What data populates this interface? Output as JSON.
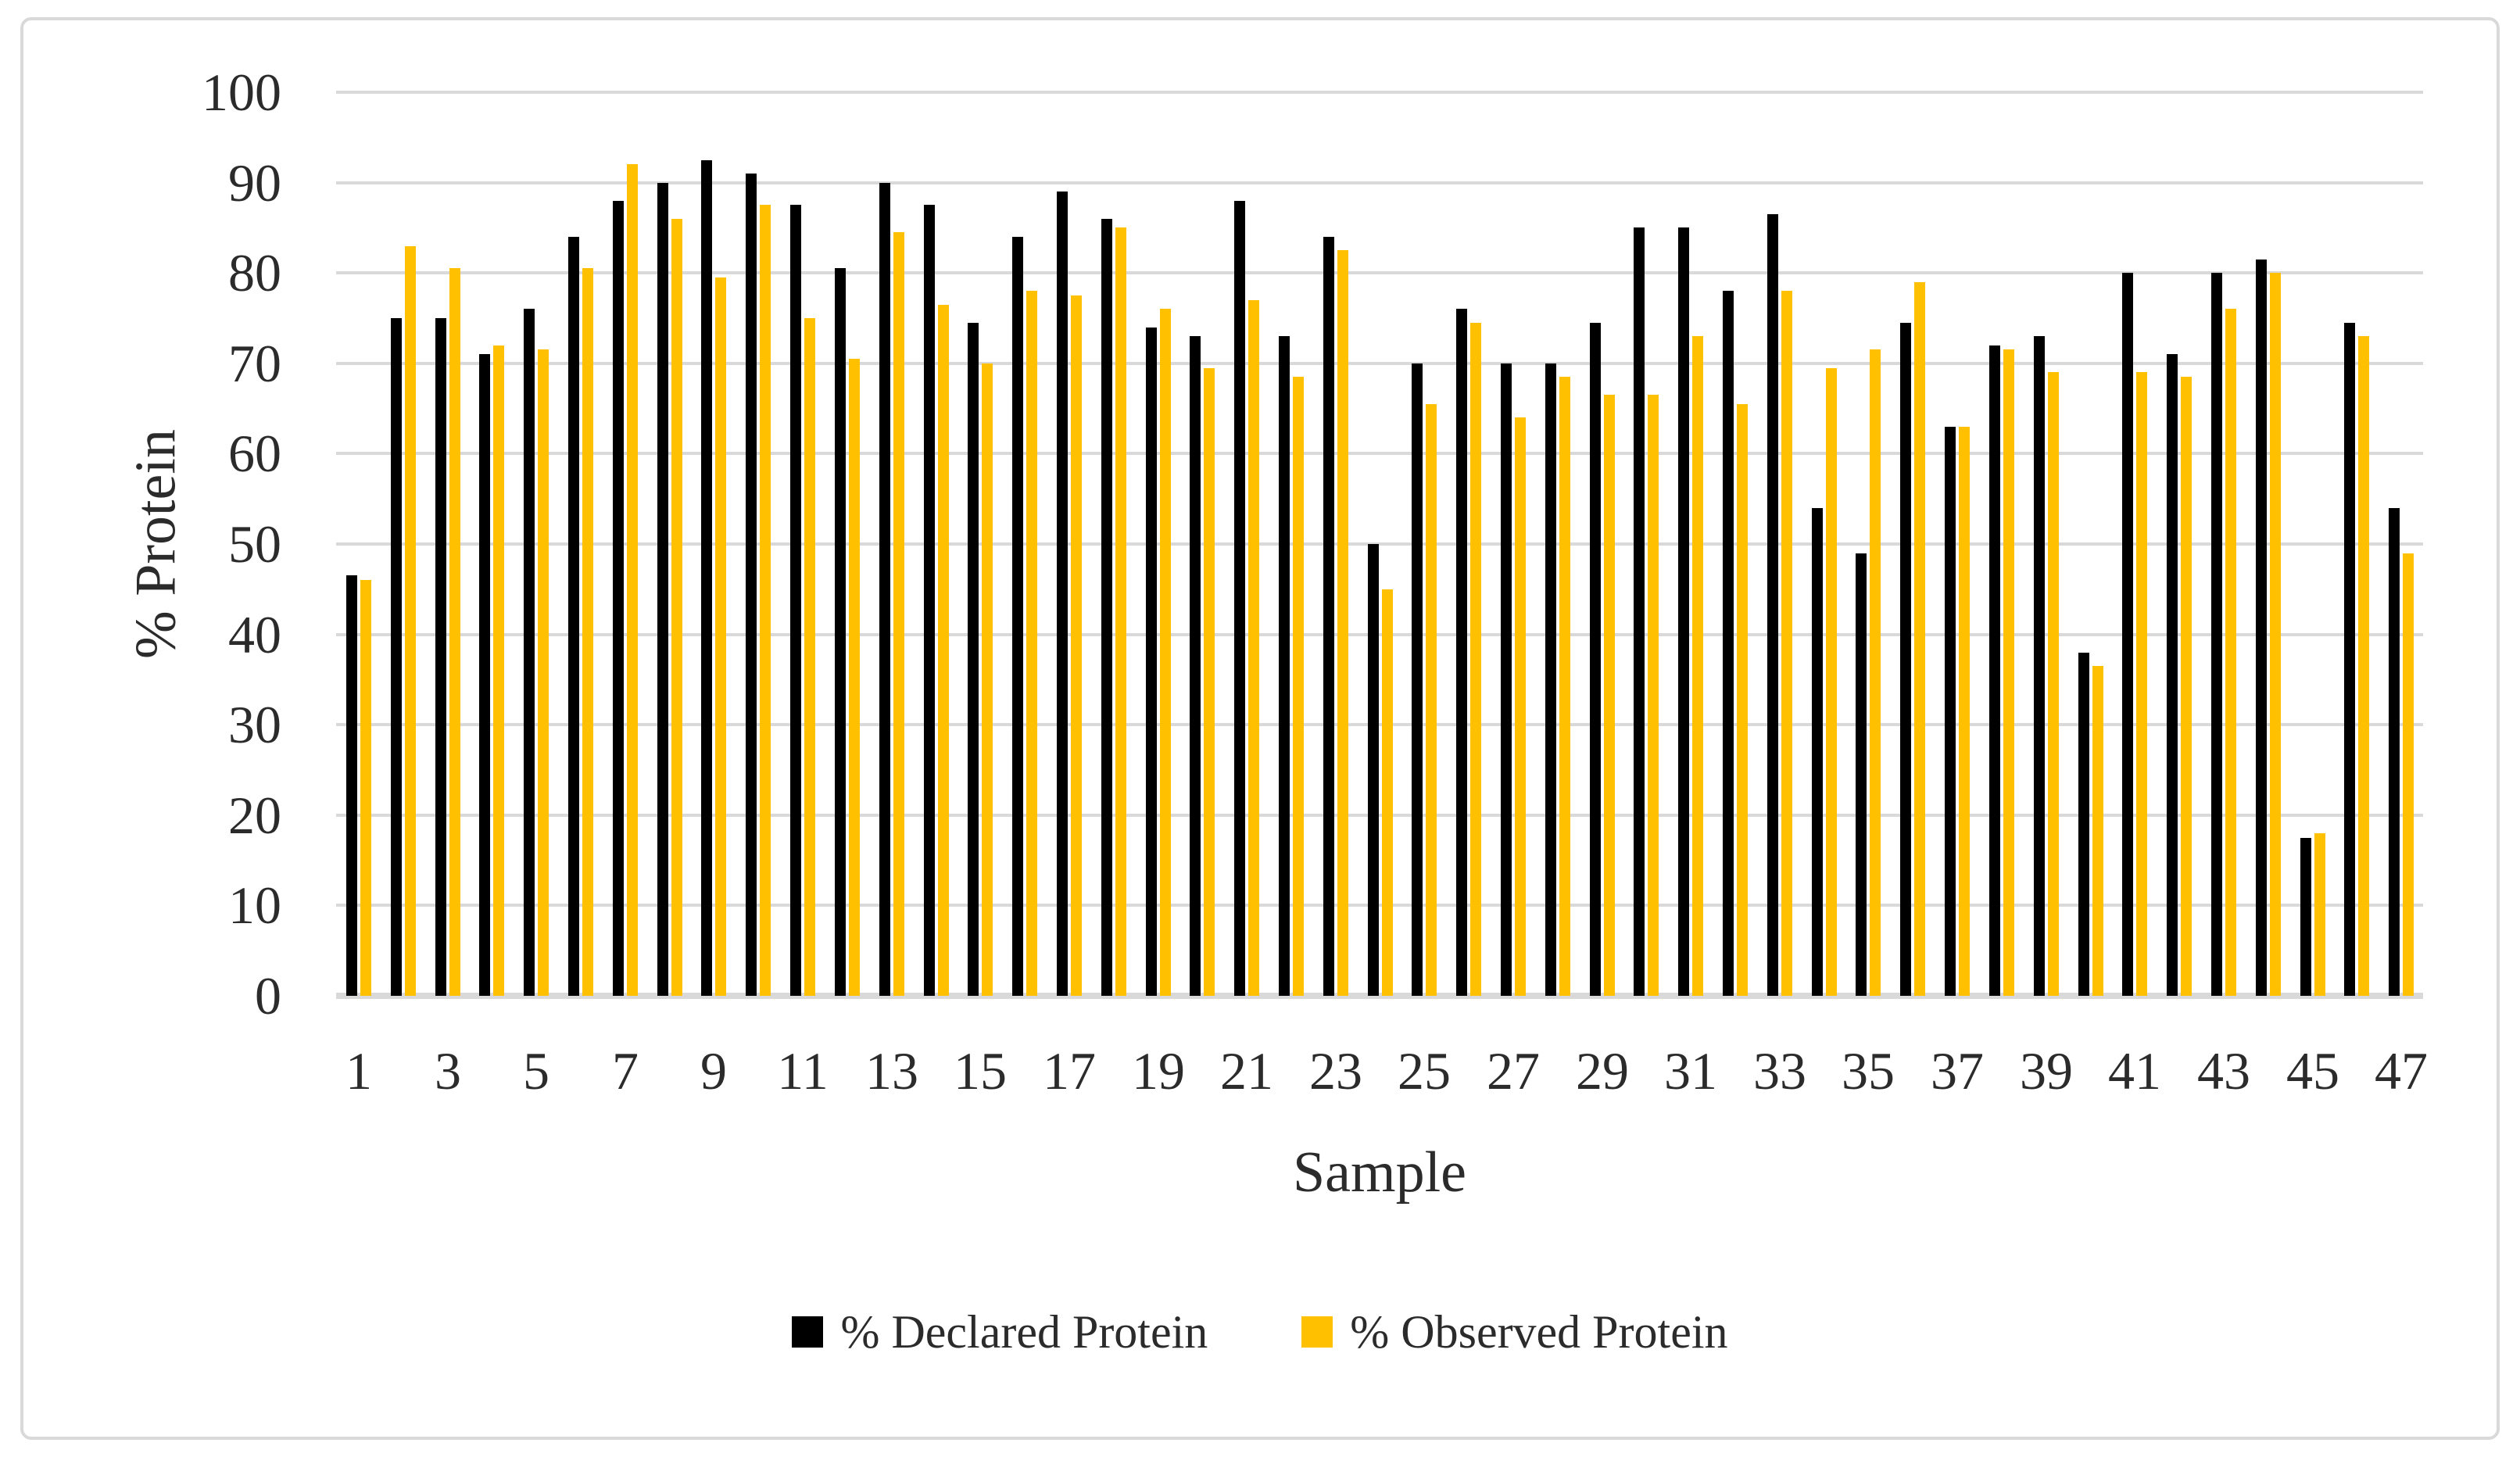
{
  "chart": {
    "y_axis_title": "% Protein",
    "x_axis_title": "Sample",
    "legend": [
      {
        "label": "% Declared Protein",
        "color": "#000000"
      },
      {
        "label": "% Observed Protein",
        "color": "#FFC000"
      }
    ],
    "colors": {
      "gridline": "#D9D9D9",
      "background": "#FFFFFF",
      "border": "#D9D9D9",
      "text": "#2B2B2B"
    }
  },
  "chart_data": {
    "type": "bar",
    "title": "",
    "xlabel": "Sample",
    "ylabel": "% Protein",
    "ylim": [
      0,
      100
    ],
    "y_tick_step": 10,
    "grid": true,
    "legend_position": "bottom",
    "categories": [
      1,
      2,
      3,
      4,
      5,
      6,
      7,
      8,
      9,
      10,
      11,
      12,
      13,
      14,
      15,
      16,
      17,
      18,
      19,
      20,
      21,
      22,
      23,
      24,
      25,
      26,
      27,
      28,
      29,
      30,
      31,
      32,
      33,
      34,
      35,
      36,
      37,
      38,
      39,
      40,
      41,
      42,
      43,
      44,
      45,
      46,
      47
    ],
    "x_tick_labels": [
      1,
      3,
      5,
      7,
      9,
      11,
      13,
      15,
      17,
      19,
      21,
      23,
      25,
      27,
      29,
      31,
      33,
      35,
      37,
      39,
      41,
      43,
      45,
      47
    ],
    "series": [
      {
        "name": "% Declared Protein",
        "color": "#000000",
        "values": [
          46.5,
          75,
          75,
          71,
          76,
          84,
          88,
          90,
          92.5,
          91,
          87.5,
          80.5,
          90,
          87.5,
          74.5,
          84,
          89,
          86,
          74,
          73,
          88,
          73,
          84,
          50,
          70,
          76,
          70,
          70,
          74.5,
          85,
          85,
          78,
          86.5,
          54,
          49,
          74.5,
          63,
          72,
          73,
          38,
          80,
          71,
          80,
          81.5,
          17.5,
          74.5,
          54
        ]
      },
      {
        "name": "% Observed Protein",
        "color": "#FFC000",
        "values": [
          46,
          83,
          80.5,
          72,
          71.5,
          80.5,
          92,
          86,
          79.5,
          87.5,
          75,
          70.5,
          84.5,
          76.5,
          70,
          78,
          77.5,
          85,
          76,
          69.5,
          77,
          68.5,
          82.5,
          45,
          65.5,
          74.5,
          64,
          68.5,
          66.5,
          66.5,
          73,
          65.5,
          78,
          69.5,
          71.5,
          79,
          63,
          71.5,
          69,
          36.5,
          69,
          68.5,
          76,
          80,
          18,
          73,
          49
        ]
      }
    ]
  }
}
